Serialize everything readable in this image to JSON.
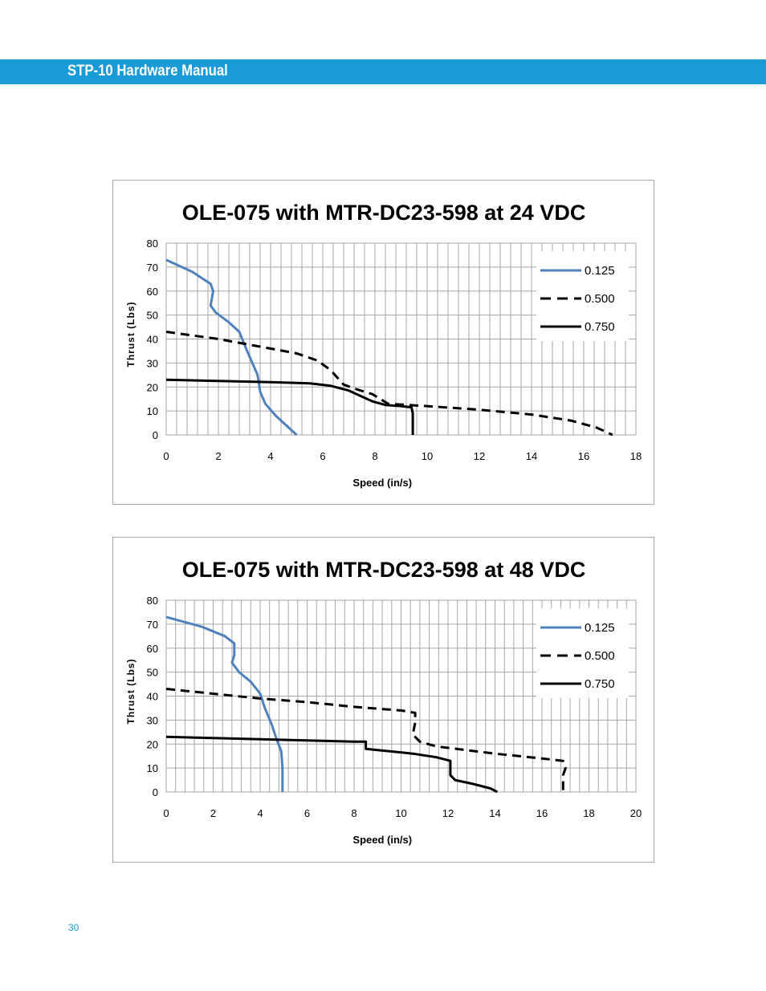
{
  "header": {
    "title": "STP-10 Hardware Manual"
  },
  "page_number": "30",
  "colors": {
    "header_bar": "#1a9ad6",
    "series_blue": "#4f81bd",
    "series_black": "#000000",
    "grid": "#a6a6a6"
  },
  "chart_data": [
    {
      "type": "line",
      "title": "OLE-075 with MTR-DC23-598 at 24 VDC",
      "xlabel": "Speed (in/s)",
      "ylabel": "Thrust (Lbs)",
      "xlim": [
        0,
        18
      ],
      "ylim": [
        0,
        80
      ],
      "xticks": [
        0,
        2,
        4,
        6,
        8,
        10,
        12,
        14,
        16,
        18
      ],
      "yticks": [
        0,
        10,
        20,
        30,
        40,
        50,
        60,
        70,
        80
      ],
      "grid": true,
      "legend_position": "top-right",
      "series": [
        {
          "name": "0.125",
          "style": "solid-blue",
          "x": [
            0,
            1,
            1.7,
            1.8,
            1.7,
            1.9,
            2.4,
            2.8,
            3.1,
            3.5,
            3.6,
            3.8,
            4.2,
            4.6,
            5.0
          ],
          "y": [
            73,
            68,
            63,
            60,
            54,
            51,
            47,
            43,
            35,
            25,
            18,
            13,
            8,
            4,
            0
          ]
        },
        {
          "name": "0.500",
          "style": "dashed-black",
          "x": [
            0,
            2,
            4,
            5,
            5.8,
            6.3,
            6.8,
            7.3,
            7.9,
            8.5,
            10,
            12,
            14,
            15.5,
            16.5,
            17.1
          ],
          "y": [
            43,
            40,
            36,
            34,
            31,
            27,
            21,
            19,
            17,
            13,
            12,
            10.5,
            8.5,
            6,
            3,
            0
          ]
        },
        {
          "name": "0.750",
          "style": "solid-black",
          "x": [
            0,
            2,
            4,
            5.5,
            6.3,
            7,
            7.5,
            7.9,
            8.4,
            9.0,
            9.4,
            9.45,
            9.45
          ],
          "y": [
            23,
            22.5,
            22,
            21.5,
            20.5,
            18.5,
            16,
            14,
            12.5,
            12,
            11.5,
            9,
            0
          ]
        }
      ]
    },
    {
      "type": "line",
      "title": "OLE-075 with MTR-DC23-598 at 48 VDC",
      "xlabel": "Speed (in/s)",
      "ylabel": "Thrust (Lbs)",
      "xlim": [
        0,
        20
      ],
      "ylim": [
        0,
        80
      ],
      "xticks": [
        0,
        2,
        4,
        6,
        8,
        10,
        12,
        14,
        16,
        18,
        20
      ],
      "yticks": [
        0,
        10,
        20,
        30,
        40,
        50,
        60,
        70,
        80
      ],
      "grid": true,
      "legend_position": "top-right",
      "series": [
        {
          "name": "0.125",
          "style": "solid-blue",
          "x": [
            0,
            1.5,
            2.5,
            2.9,
            2.9,
            2.8,
            3.1,
            3.6,
            4.0,
            4.2,
            4.5,
            4.7,
            4.9,
            4.95,
            4.95
          ],
          "y": [
            73,
            69,
            65,
            62,
            57,
            54,
            50,
            46,
            41,
            35,
            28,
            22,
            17,
            10,
            0
          ]
        },
        {
          "name": "0.500",
          "style": "dashed-black",
          "x": [
            0,
            2,
            4,
            6,
            8,
            10,
            10.6,
            10.6,
            10.5,
            10.8,
            11.5,
            14,
            16,
            16.9,
            17.0,
            16.9,
            16.9
          ],
          "y": [
            43,
            41,
            39,
            37.5,
            35.5,
            34,
            33,
            29,
            24,
            21,
            19,
            16,
            14,
            13,
            10,
            7,
            0
          ]
        },
        {
          "name": "0.750",
          "style": "solid-black",
          "x": [
            0,
            2,
            4,
            6,
            8,
            8.5,
            8.5,
            9,
            10.5,
            11.5,
            12.1,
            12.1,
            12.3,
            13,
            13.8,
            14.1
          ],
          "y": [
            23,
            22.5,
            22,
            21.5,
            21,
            21,
            18,
            17.5,
            16,
            14.5,
            13,
            7,
            5,
            3.5,
            1.5,
            0
          ]
        }
      ]
    }
  ]
}
